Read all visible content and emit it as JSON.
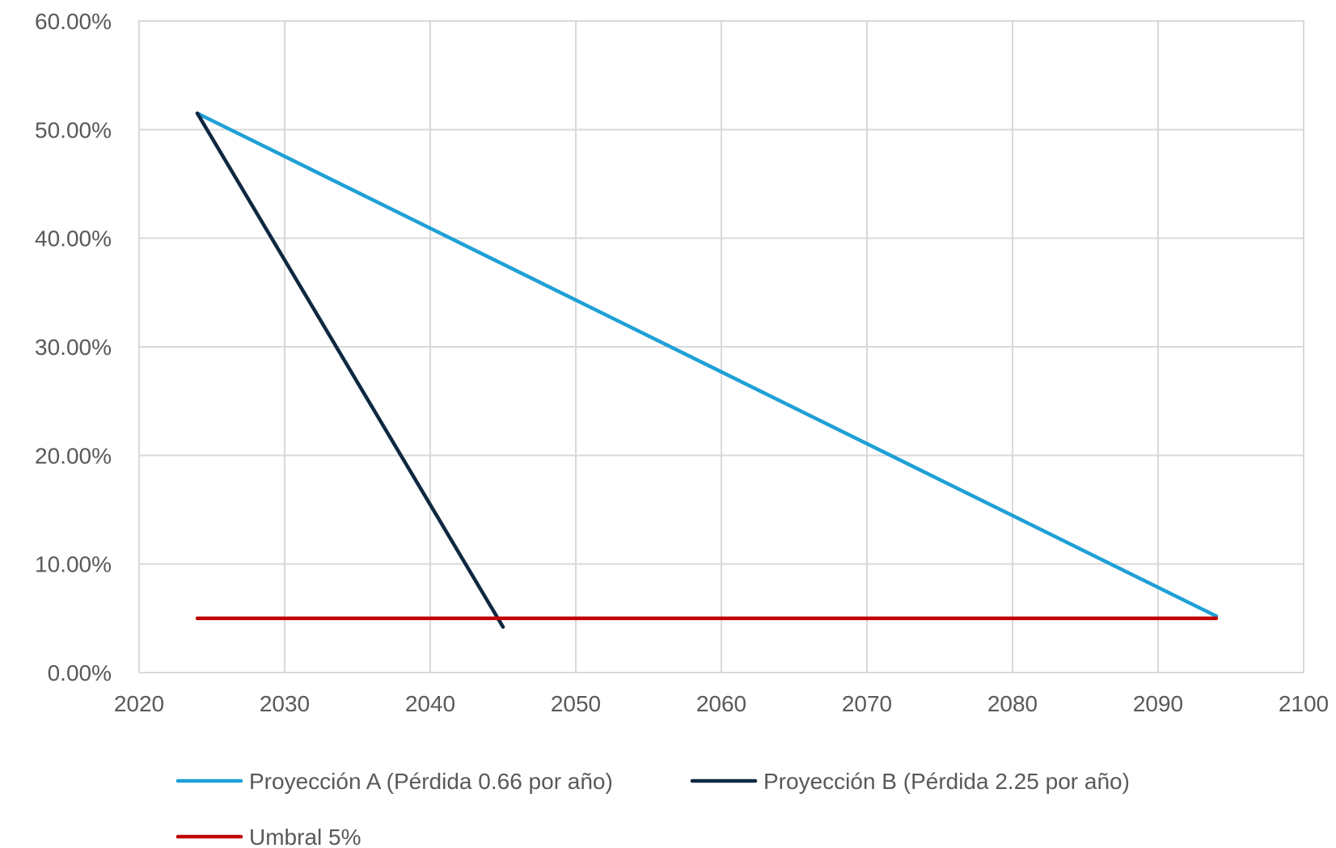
{
  "chart_data": {
    "type": "line",
    "title": "",
    "xlabel": "",
    "ylabel": "",
    "xlim": [
      2020,
      2100
    ],
    "ylim": [
      0,
      60
    ],
    "x_ticks": [
      2020,
      2030,
      2040,
      2050,
      2060,
      2070,
      2080,
      2090,
      2100
    ],
    "y_ticks": [
      0,
      10,
      20,
      30,
      40,
      50,
      60
    ],
    "y_tick_labels": [
      "0.00%",
      "10.00%",
      "20.00%",
      "30.00%",
      "40.00%",
      "50.00%",
      "60.00%"
    ],
    "grid": true,
    "legend_position": "bottom",
    "series": [
      {
        "name": "Proyección A (Pérdida 0.66 por año)",
        "color": "#1fa0d6",
        "points": [
          [
            2024,
            51.5
          ],
          [
            2094,
            5.2
          ]
        ]
      },
      {
        "name": "Proyección B (Pérdida 2.25 por año)",
        "color": "#0e2841",
        "points": [
          [
            2024,
            51.5
          ],
          [
            2045,
            4.2
          ]
        ]
      },
      {
        "name": "Umbral 5%",
        "color": "#c00000",
        "points": [
          [
            2024,
            5.0
          ],
          [
            2094,
            5.0
          ]
        ]
      }
    ]
  }
}
